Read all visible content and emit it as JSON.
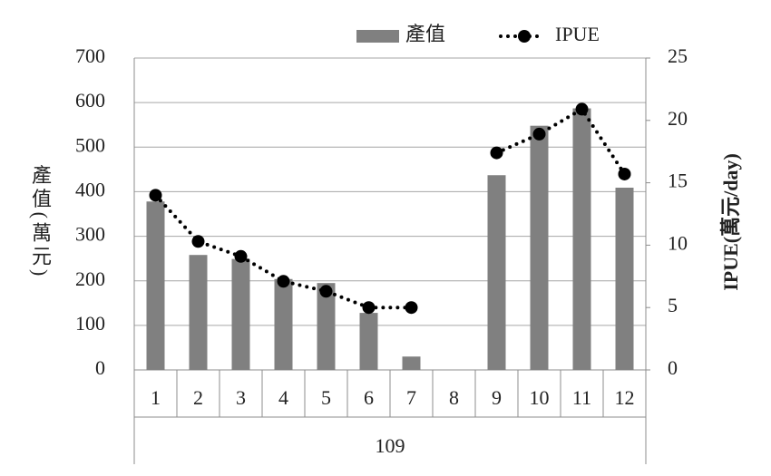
{
  "chart_data": {
    "type": "bar_line",
    "categories": [
      "1",
      "2",
      "3",
      "4",
      "5",
      "6",
      "7",
      "8",
      "9",
      "10",
      "11",
      "12"
    ],
    "xlabel": "109",
    "ylabel": "產值(萬元)",
    "y2label": "IPUE(萬元/day)",
    "series": [
      {
        "name": "產值",
        "type": "bar",
        "color": "#808080",
        "values": [
          378,
          258,
          249,
          204,
          195,
          128,
          30,
          null,
          437,
          548,
          587,
          409
        ]
      },
      {
        "name": "IPUE",
        "type": "line",
        "axis": "y2",
        "color": "#000000",
        "values": [
          14.0,
          10.3,
          9.1,
          7.1,
          6.3,
          5.0,
          5.0,
          null,
          17.4,
          18.9,
          20.9,
          15.7
        ]
      }
    ],
    "ylim": [
      0,
      700
    ],
    "yticks": [
      0,
      100,
      200,
      300,
      400,
      500,
      600,
      700
    ],
    "y2lim": [
      0,
      25
    ],
    "y2ticks": [
      0,
      5,
      10,
      15,
      20,
      25
    ],
    "grid": true,
    "legend": "top"
  }
}
